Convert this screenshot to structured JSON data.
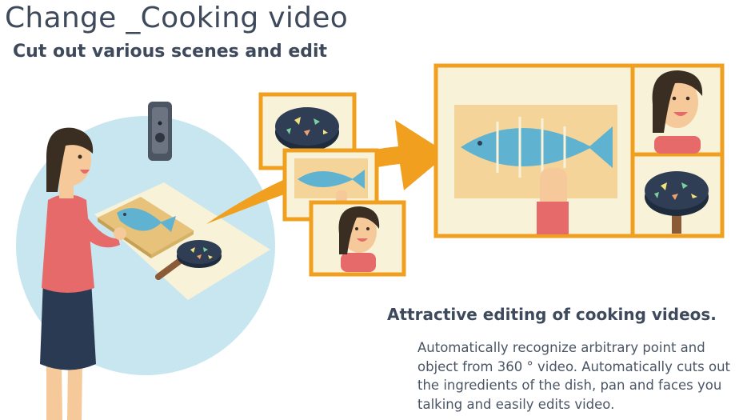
{
  "header": {
    "title": "Change _Cooking video",
    "subtitle": "Cut out various scenes and edit"
  },
  "feature": {
    "heading": "Attractive editing of cooking videos.",
    "description": "Automatically recognize arbitrary point and object from 360 ° video. Automatically cuts out the ingredients of the dish, pan and faces you talking and easily edits video."
  },
  "colors": {
    "frame": "#f0a01e",
    "text": "#3e4a5c",
    "circle": "#c7e6ef",
    "fish": "#5fb3d0",
    "pan": "#2f3e55",
    "shirt": "#e76a6a",
    "skirt": "#2a3a52"
  },
  "icons": [
    "camera-360-icon",
    "arrow-icon",
    "fish-icon",
    "pan-icon",
    "face-icon",
    "person-icon"
  ]
}
